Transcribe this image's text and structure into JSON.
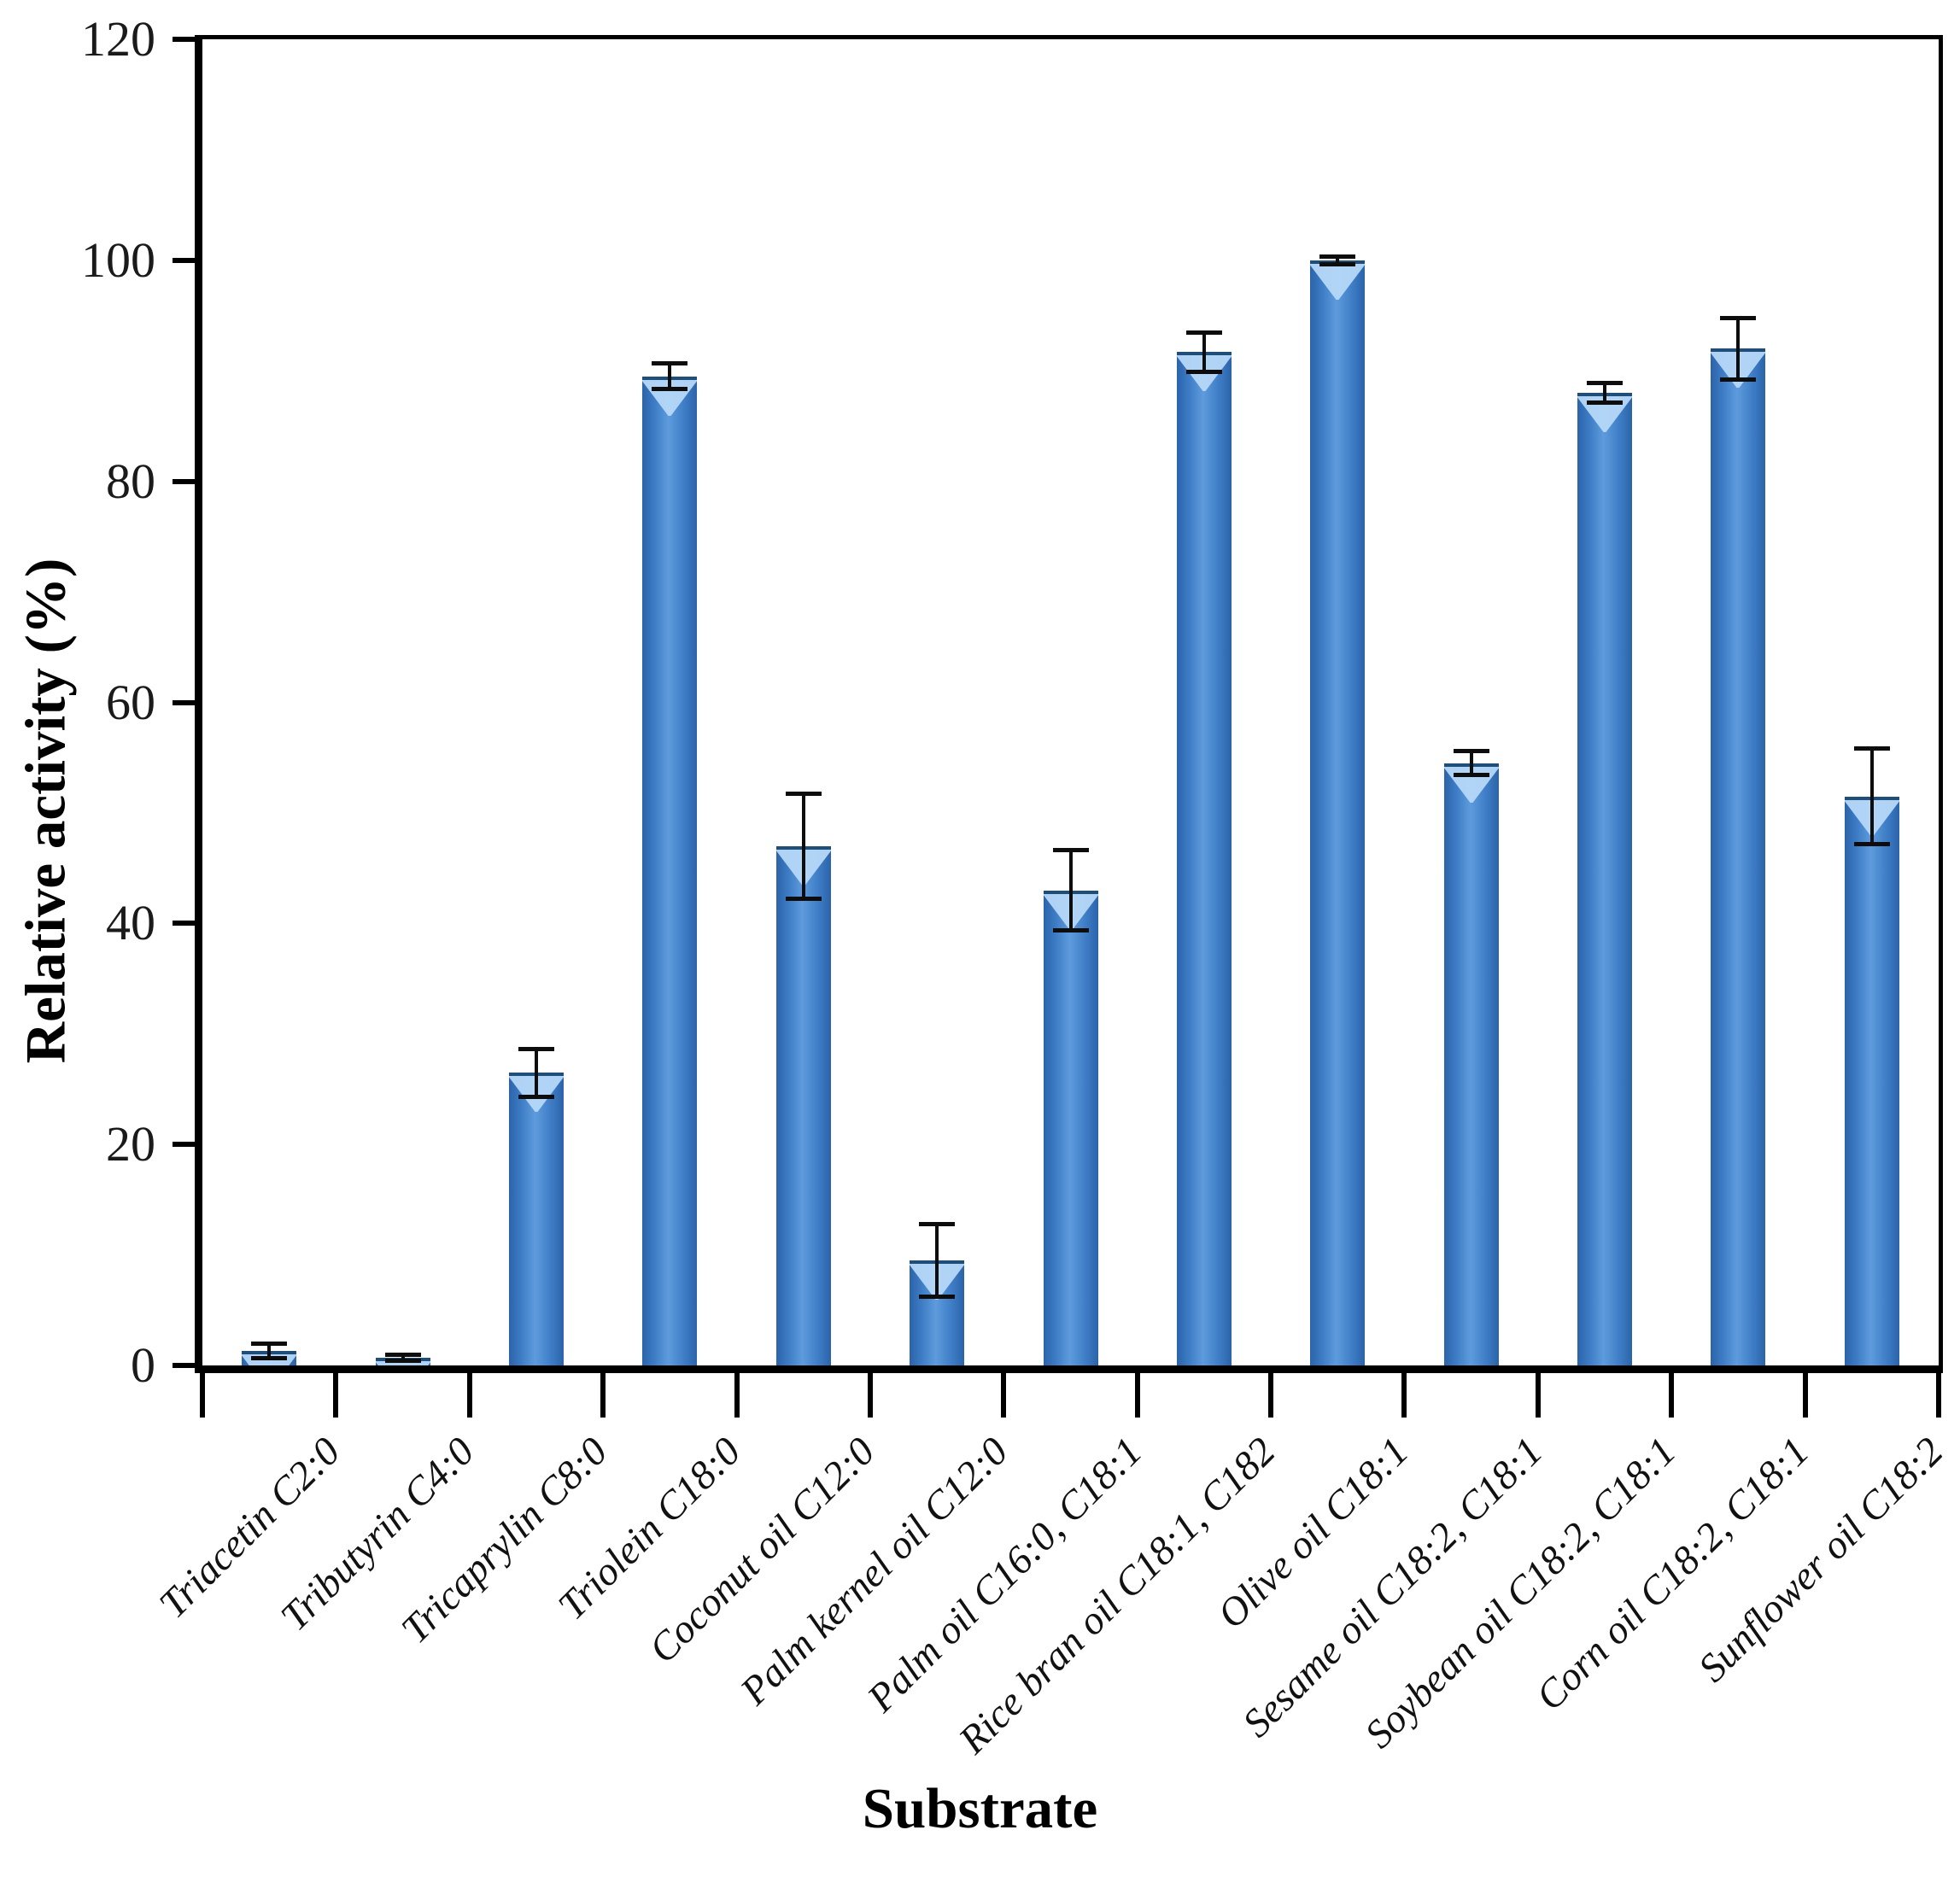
{
  "figure": {
    "x_axis_title": "Substrate",
    "y_axis_title": "Relative activity (%)"
  },
  "chart_data": {
    "type": "bar",
    "title": "",
    "xlabel": "Substrate",
    "ylabel": "Relative activity (%)",
    "categories": [
      "Triacetin C2:0",
      "Tributyrin C4:0",
      "Tricaprylin C8:0",
      "Triolein C18:0",
      "Coconut oil C12:0",
      "Palm kernel oil C12:0",
      "Palm oil C16:0, C18:1",
      "Rice bran oil C18:1, C182",
      "Olive oil C18:1",
      "Sesame oil C18:2, C18:1",
      "Soybean oil C18:2, C18:1",
      "Corn oil C18:2, C18:1",
      "Sunflower oil C18:2"
    ],
    "values": [
      1.3,
      0.7,
      26.5,
      89.5,
      47,
      9.5,
      43,
      91.7,
      100,
      54.5,
      88,
      92,
      51.5
    ],
    "errors": [
      0.7,
      0.3,
      2.2,
      1.2,
      4.8,
      3.3,
      3.7,
      1.8,
      0.4,
      1.1,
      0.9,
      2.8,
      4.4
    ],
    "ylim": [
      0,
      120
    ],
    "yticks": [
      0,
      20,
      40,
      60,
      80,
      100,
      120
    ],
    "grid": "off",
    "legend": "none",
    "bar_color": "#3d7cc5",
    "bar_edge_color": "#1f4e79",
    "error_bar_color": "#0d0d0d"
  }
}
